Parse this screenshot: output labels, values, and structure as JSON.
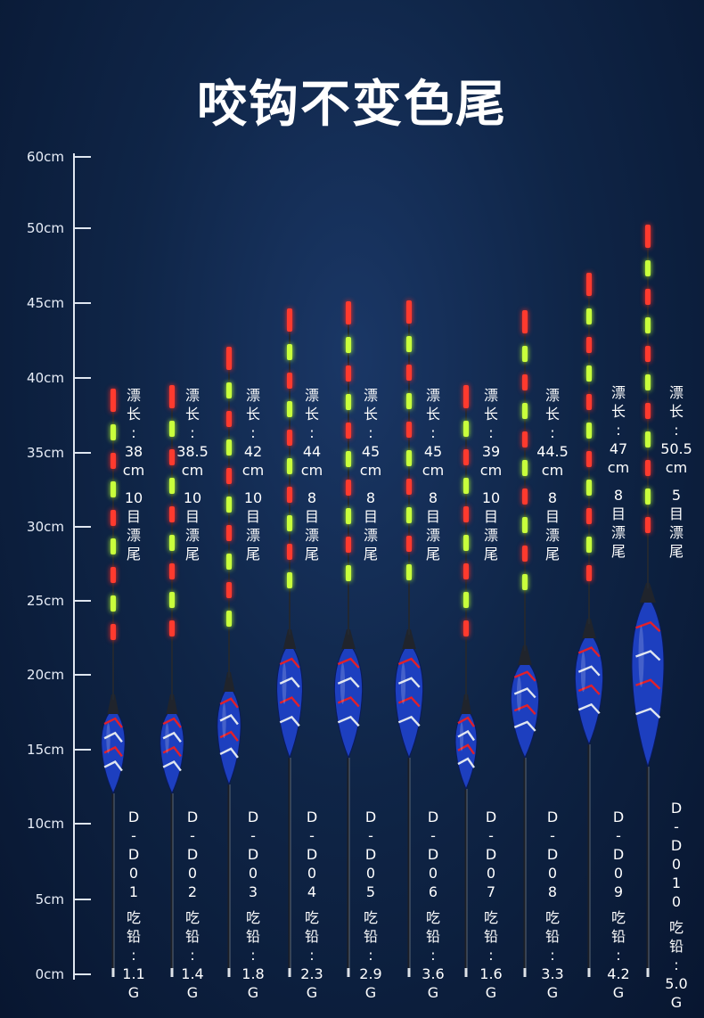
{
  "title": "咬钩不变色尾",
  "ruler": {
    "labels": [
      "60cm",
      "50cm",
      "45cm",
      "40cm",
      "35cm",
      "30cm",
      "25cm",
      "20cm",
      "15cm",
      "10cm",
      "5cm",
      "0cm"
    ]
  },
  "floats": [
    {
      "length_value": "38",
      "length_unit": "cm",
      "mesh": "10",
      "code": [
        "D",
        "-",
        "D",
        "0",
        "1"
      ],
      "lead": "1.1",
      "lead_unit": "G"
    },
    {
      "length_value": "38.5",
      "length_unit": "cm",
      "mesh": "10",
      "code": [
        "D",
        "-",
        "D",
        "0",
        "2"
      ],
      "lead": "1.4",
      "lead_unit": "G"
    },
    {
      "length_value": "42",
      "length_unit": "cm",
      "mesh": "10",
      "code": [
        "D",
        "-",
        "D",
        "0",
        "3"
      ],
      "lead": "1.8",
      "lead_unit": "G"
    },
    {
      "length_value": "44",
      "length_unit": "cm",
      "mesh": "8",
      "code": [
        "D",
        "-",
        "D",
        "0",
        "4"
      ],
      "lead": "2.3",
      "lead_unit": "G"
    },
    {
      "length_value": "45",
      "length_unit": "cm",
      "mesh": "8",
      "code": [
        "D",
        "-",
        "D",
        "0",
        "5"
      ],
      "lead": "2.9",
      "lead_unit": "G"
    },
    {
      "length_value": "45",
      "length_unit": "cm",
      "mesh": "8",
      "code": [
        "D",
        "-",
        "D",
        "0",
        "6"
      ],
      "lead": "3.6",
      "lead_unit": "G"
    },
    {
      "length_value": "39",
      "length_unit": "cm",
      "mesh": "10",
      "code": [
        "D",
        "-",
        "D",
        "0",
        "7"
      ],
      "lead": "1.6",
      "lead_unit": "G"
    },
    {
      "length_value": "44.5",
      "length_unit": "cm",
      "mesh": "8",
      "code": [
        "D",
        "-",
        "D",
        "0",
        "8"
      ],
      "lead": "3.3",
      "lead_unit": "G"
    },
    {
      "length_value": "47",
      "length_unit": "cm",
      "mesh": "8",
      "code": [
        "D",
        "-",
        "D",
        "0",
        "9"
      ],
      "lead": "4.2",
      "lead_unit": "G"
    },
    {
      "length_value": "50.5",
      "length_unit": "cm",
      "mesh": "5",
      "code": [
        "D",
        "-",
        "D",
        "0",
        "1",
        "0"
      ],
      "lead": "5.0",
      "lead_unit": "G"
    }
  ],
  "labels": {
    "piao": "漂",
    "chang": "长",
    "colon": ":",
    "mu": "目",
    "wei": "尾",
    "chi": "吃",
    "qian": "铅"
  },
  "colors": {
    "red_segment": "#ff3a2e",
    "green_segment": "#c8ff3c",
    "body": "#1d3fbf"
  }
}
